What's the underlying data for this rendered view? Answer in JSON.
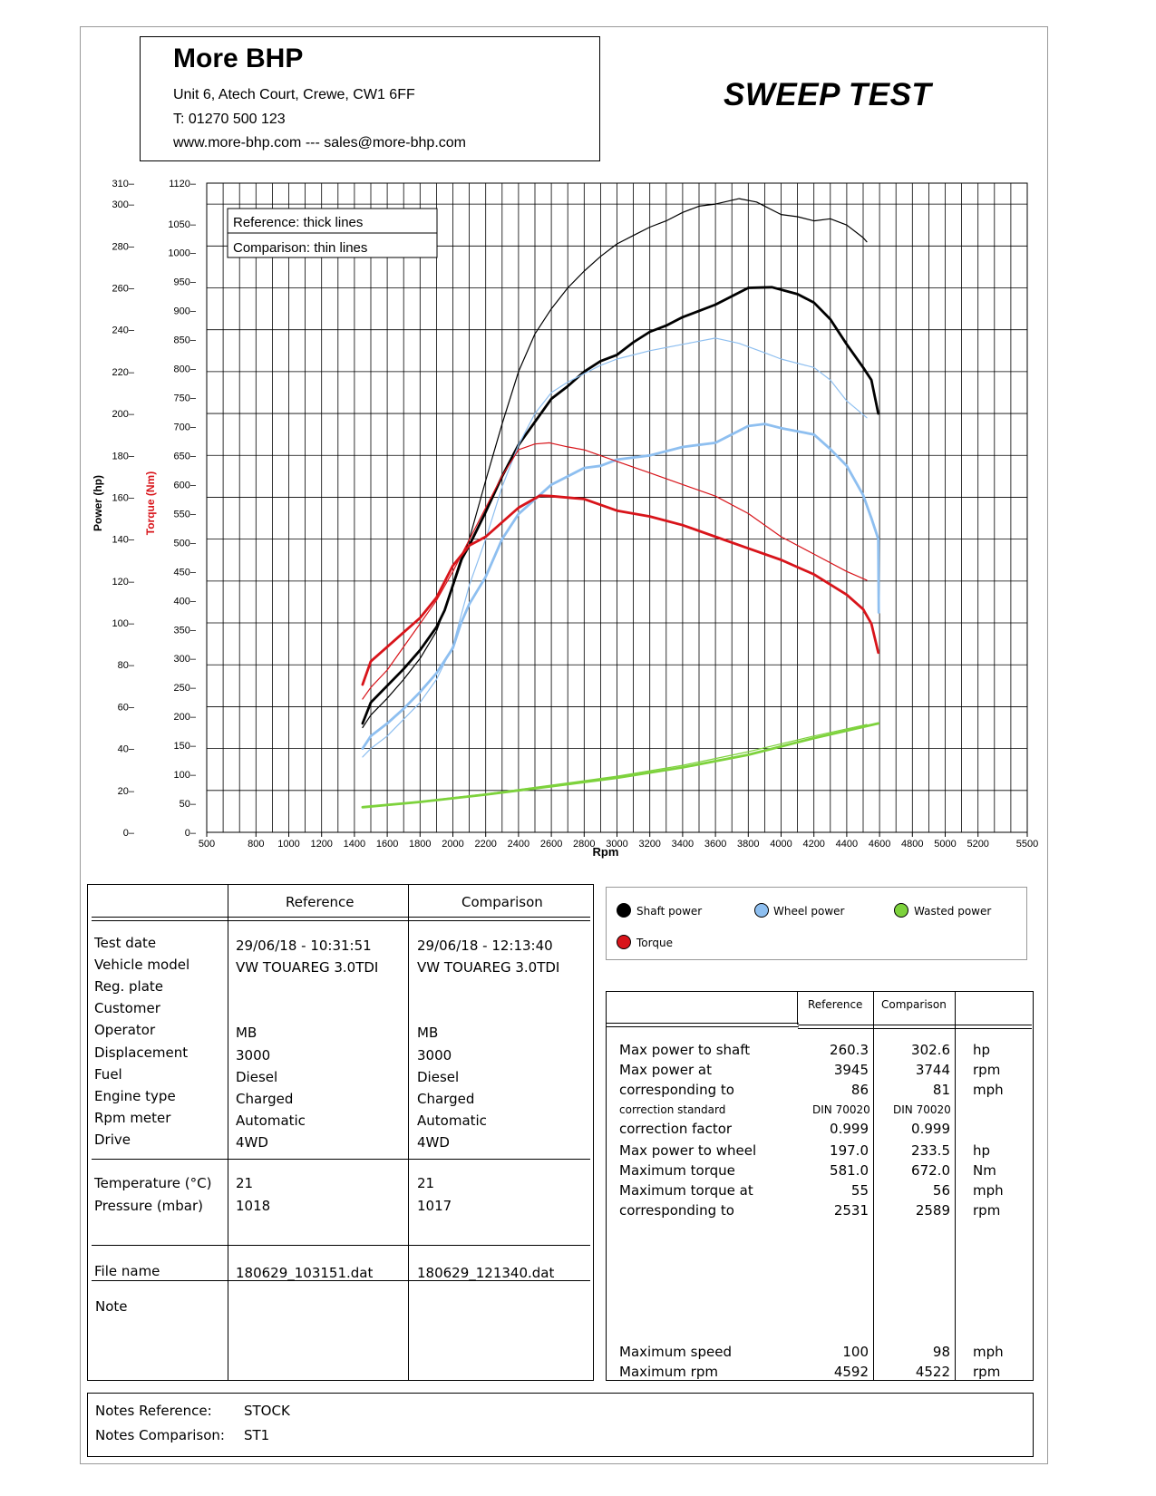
{
  "header": {
    "company": "More BHP",
    "address": "Unit 6, Atech Court, Crewe, CW1 6FF",
    "phone": "T: 01270 500 123",
    "web": "www.more-bhp.com --- sales@more-bhp.com",
    "title": "SWEEP TEST"
  },
  "chart_data": {
    "type": "line",
    "xlabel": "Rpm",
    "ylabel_left": "Power (hp)",
    "ylabel_right": "Torque (Nm)",
    "x_ticks": [
      500,
      800,
      1000,
      1200,
      1400,
      1600,
      1800,
      2000,
      2200,
      2400,
      2600,
      2800,
      3000,
      3200,
      3400,
      3600,
      3800,
      4000,
      4200,
      4400,
      4600,
      4800,
      5000,
      5200,
      5500
    ],
    "power_ticks": [
      0,
      20,
      40,
      60,
      80,
      100,
      120,
      140,
      160,
      180,
      200,
      220,
      240,
      260,
      280,
      300,
      310
    ],
    "torque_ticks": [
      0,
      50,
      100,
      150,
      200,
      250,
      300,
      350,
      400,
      450,
      500,
      550,
      600,
      650,
      700,
      750,
      800,
      850,
      900,
      950,
      1000,
      1050,
      1120
    ],
    "xlim": [
      500,
      5500
    ],
    "power_ylim": [
      0,
      310
    ],
    "torque_ylim": [
      0,
      1120
    ],
    "grid": true,
    "legend_box": [
      "Reference: thick lines",
      "Comparison: thin lines"
    ],
    "colors": {
      "shaft": "#000000",
      "wheel": "#8ebff0",
      "wasted": "#7dd23c",
      "torque": "#d8141a"
    },
    "series": [
      {
        "name": "Shaft power",
        "run": "Reference",
        "axis": "power",
        "color": "#000000",
        "points": [
          [
            1450,
            52
          ],
          [
            1500,
            62
          ],
          [
            1600,
            70
          ],
          [
            1700,
            78
          ],
          [
            1800,
            87
          ],
          [
            1900,
            98
          ],
          [
            1950,
            106
          ],
          [
            2000,
            118
          ],
          [
            2050,
            130
          ],
          [
            2100,
            137
          ],
          [
            2200,
            153
          ],
          [
            2300,
            170
          ],
          [
            2400,
            185
          ],
          [
            2500,
            196
          ],
          [
            2600,
            207
          ],
          [
            2700,
            213
          ],
          [
            2800,
            220
          ],
          [
            2900,
            225
          ],
          [
            3000,
            228
          ],
          [
            3100,
            234
          ],
          [
            3200,
            239
          ],
          [
            3300,
            242
          ],
          [
            3400,
            246
          ],
          [
            3500,
            249
          ],
          [
            3600,
            252
          ],
          [
            3700,
            256
          ],
          [
            3800,
            260
          ],
          [
            3945,
            260.3
          ],
          [
            4100,
            257
          ],
          [
            4200,
            253
          ],
          [
            4300,
            245
          ],
          [
            4400,
            233
          ],
          [
            4500,
            222
          ],
          [
            4550,
            216
          ],
          [
            4592,
            200
          ]
        ]
      },
      {
        "name": "Shaft power",
        "run": "Comparison",
        "axis": "power",
        "color": "#000000",
        "points": [
          [
            1450,
            50
          ],
          [
            1500,
            56
          ],
          [
            1600,
            64
          ],
          [
            1700,
            73
          ],
          [
            1800,
            83
          ],
          [
            1900,
            96
          ],
          [
            2000,
            117
          ],
          [
            2100,
            140
          ],
          [
            2200,
            168
          ],
          [
            2300,
            195
          ],
          [
            2400,
            220
          ],
          [
            2500,
            238
          ],
          [
            2600,
            250
          ],
          [
            2700,
            260
          ],
          [
            2800,
            268
          ],
          [
            2900,
            275
          ],
          [
            3000,
            281
          ],
          [
            3100,
            285
          ],
          [
            3200,
            289
          ],
          [
            3300,
            292
          ],
          [
            3400,
            296
          ],
          [
            3500,
            299
          ],
          [
            3600,
            300
          ],
          [
            3744,
            302.6
          ],
          [
            3850,
            301
          ],
          [
            4000,
            295
          ],
          [
            4100,
            294
          ],
          [
            4200,
            292
          ],
          [
            4300,
            293
          ],
          [
            4400,
            290
          ],
          [
            4500,
            284
          ],
          [
            4522,
            282
          ]
        ]
      },
      {
        "name": "Wheel power",
        "run": "Reference",
        "axis": "power",
        "color": "#8ebff0",
        "points": [
          [
            1450,
            40
          ],
          [
            1500,
            46
          ],
          [
            1600,
            52
          ],
          [
            1700,
            59
          ],
          [
            1800,
            67
          ],
          [
            1900,
            76
          ],
          [
            2000,
            88
          ],
          [
            2050,
            100
          ],
          [
            2100,
            109
          ],
          [
            2200,
            122
          ],
          [
            2300,
            140
          ],
          [
            2400,
            152
          ],
          [
            2500,
            159
          ],
          [
            2600,
            166
          ],
          [
            2700,
            170
          ],
          [
            2800,
            174
          ],
          [
            2900,
            175
          ],
          [
            3000,
            178
          ],
          [
            3200,
            180
          ],
          [
            3400,
            184
          ],
          [
            3600,
            186
          ],
          [
            3800,
            194
          ],
          [
            3900,
            195
          ],
          [
            4000,
            193
          ],
          [
            4200,
            190
          ],
          [
            4300,
            183
          ],
          [
            4400,
            175
          ],
          [
            4500,
            161
          ],
          [
            4550,
            150
          ],
          [
            4592,
            140
          ],
          [
            4595,
            105
          ]
        ]
      },
      {
        "name": "Wheel power",
        "run": "Comparison",
        "axis": "power",
        "color": "#8ebff0",
        "points": [
          [
            1450,
            36
          ],
          [
            1500,
            40
          ],
          [
            1600,
            46
          ],
          [
            1700,
            54
          ],
          [
            1800,
            62
          ],
          [
            1900,
            73
          ],
          [
            2000,
            89
          ],
          [
            2100,
            118
          ],
          [
            2200,
            140
          ],
          [
            2300,
            165
          ],
          [
            2400,
            185
          ],
          [
            2500,
            200
          ],
          [
            2600,
            210
          ],
          [
            2700,
            215
          ],
          [
            2800,
            219
          ],
          [
            2900,
            223
          ],
          [
            3000,
            226
          ],
          [
            3200,
            230
          ],
          [
            3400,
            233
          ],
          [
            3600,
            236
          ],
          [
            3744,
            233.5
          ],
          [
            3900,
            229
          ],
          [
            4000,
            226
          ],
          [
            4200,
            222
          ],
          [
            4300,
            216
          ],
          [
            4400,
            206
          ],
          [
            4522,
            198
          ]
        ]
      },
      {
        "name": "Torque",
        "run": "Reference",
        "axis": "torque",
        "color": "#d8141a",
        "points": [
          [
            1450,
            255
          ],
          [
            1500,
            295
          ],
          [
            1600,
            320
          ],
          [
            1700,
            345
          ],
          [
            1800,
            370
          ],
          [
            1900,
            405
          ],
          [
            2000,
            460
          ],
          [
            2100,
            495
          ],
          [
            2200,
            510
          ],
          [
            2300,
            535
          ],
          [
            2400,
            560
          ],
          [
            2531,
            581
          ],
          [
            2600,
            580
          ],
          [
            2800,
            575
          ],
          [
            3000,
            555
          ],
          [
            3200,
            545
          ],
          [
            3400,
            530
          ],
          [
            3600,
            510
          ],
          [
            3800,
            490
          ],
          [
            4000,
            470
          ],
          [
            4200,
            445
          ],
          [
            4400,
            410
          ],
          [
            4500,
            385
          ],
          [
            4550,
            360
          ],
          [
            4592,
            310
          ]
        ]
      },
      {
        "name": "Torque",
        "run": "Comparison",
        "axis": "torque",
        "color": "#d8141a",
        "points": [
          [
            1450,
            230
          ],
          [
            1500,
            250
          ],
          [
            1600,
            280
          ],
          [
            1700,
            320
          ],
          [
            1800,
            360
          ],
          [
            1900,
            400
          ],
          [
            2000,
            450
          ],
          [
            2100,
            505
          ],
          [
            2200,
            560
          ],
          [
            2300,
            615
          ],
          [
            2400,
            660
          ],
          [
            2500,
            670
          ],
          [
            2589,
            672
          ],
          [
            2700,
            665
          ],
          [
            2800,
            660
          ],
          [
            3000,
            640
          ],
          [
            3200,
            620
          ],
          [
            3400,
            600
          ],
          [
            3600,
            580
          ],
          [
            3800,
            550
          ],
          [
            4000,
            510
          ],
          [
            4200,
            480
          ],
          [
            4400,
            450
          ],
          [
            4522,
            435
          ]
        ]
      },
      {
        "name": "Wasted power",
        "run": "Reference",
        "axis": "power",
        "color": "#7dd23c",
        "points": [
          [
            1450,
            12
          ],
          [
            1800,
            14.5
          ],
          [
            2200,
            18
          ],
          [
            2600,
            22
          ],
          [
            3000,
            26
          ],
          [
            3400,
            31
          ],
          [
            3800,
            37
          ],
          [
            4200,
            45
          ],
          [
            4592,
            52
          ]
        ]
      },
      {
        "name": "Wasted power",
        "run": "Comparison",
        "axis": "power",
        "color": "#7dd23c",
        "points": [
          [
            1450,
            12
          ],
          [
            1800,
            14.7
          ],
          [
            2200,
            18.3
          ],
          [
            2600,
            22.5
          ],
          [
            3000,
            26.8
          ],
          [
            3400,
            32
          ],
          [
            3800,
            38.5
          ],
          [
            4200,
            46
          ],
          [
            4522,
            51.5
          ]
        ]
      }
    ]
  },
  "info_table": {
    "col_reference": "Reference",
    "col_comparison": "Comparison",
    "rows_a": [
      {
        "label": "Test date",
        "ref": "29/06/18 - 10:31:51",
        "cmp": "29/06/18 - 12:13:40"
      },
      {
        "label": "Vehicle model",
        "ref": "VW TOUAREG 3.0TDI",
        "cmp": "VW TOUAREG 3.0TDI"
      },
      {
        "label": "Reg. plate",
        "ref": "",
        "cmp": ""
      },
      {
        "label": "Customer",
        "ref": "",
        "cmp": ""
      },
      {
        "label": "Operator",
        "ref": "MB",
        "cmp": "MB"
      },
      {
        "label": "Displacement",
        "ref": "3000",
        "cmp": "3000"
      },
      {
        "label": "Fuel",
        "ref": "Diesel",
        "cmp": "Diesel"
      },
      {
        "label": "Engine type",
        "ref": "Charged",
        "cmp": "Charged"
      },
      {
        "label": "Rpm meter",
        "ref": "Automatic",
        "cmp": "Automatic"
      },
      {
        "label": "Drive",
        "ref": "4WD",
        "cmp": "4WD"
      }
    ],
    "rows_b": [
      {
        "label": "Temperature (°C)",
        "ref": "21",
        "cmp": "21"
      },
      {
        "label": "Pressure (mbar)",
        "ref": "1018",
        "cmp": "1017"
      }
    ],
    "file": {
      "label": "File name",
      "ref": "180629_103151.dat",
      "cmp": "180629_121340.dat"
    },
    "note": {
      "label": "Note"
    }
  },
  "legend": {
    "shaft": "Shaft power",
    "wheel": "Wheel power",
    "wasted": "Wasted power",
    "torque": "Torque"
  },
  "results": {
    "col_reference": "Reference",
    "col_comparison": "Comparison",
    "rows": [
      {
        "label": "Max power to shaft",
        "ref": "260.3",
        "cmp": "302.6",
        "unit": "hp"
      },
      {
        "label": "Max power at",
        "ref": "3945",
        "cmp": "3744",
        "unit": "rpm"
      },
      {
        "label": "corresponding to",
        "ref": "86",
        "cmp": "81",
        "unit": "mph"
      },
      {
        "label": "correction standard",
        "ref": "DIN 70020",
        "cmp": "DIN 70020",
        "unit": "",
        "small": true
      },
      {
        "label": "correction factor",
        "ref": "0.999",
        "cmp": "0.999",
        "unit": ""
      },
      {
        "label": "Max power to wheel",
        "ref": "197.0",
        "cmp": "233.5",
        "unit": "hp"
      },
      {
        "label": "Maximum torque",
        "ref": "581.0",
        "cmp": "672.0",
        "unit": "Nm"
      },
      {
        "label": "Maximum torque at",
        "ref": "55",
        "cmp": "56",
        "unit": "mph"
      },
      {
        "label": "corresponding to",
        "ref": "2531",
        "cmp": "2589",
        "unit": "rpm"
      }
    ],
    "bottom_rows": [
      {
        "label": "Maximum speed",
        "ref": "100",
        "cmp": "98",
        "unit": "mph"
      },
      {
        "label": "Maximum rpm",
        "ref": "4592",
        "cmp": "4522",
        "unit": "rpm"
      }
    ]
  },
  "notes": {
    "ref_label": "Notes Reference:",
    "ref_value": "STOCK",
    "cmp_label": "Notes Comparison:",
    "cmp_value": "ST1"
  }
}
